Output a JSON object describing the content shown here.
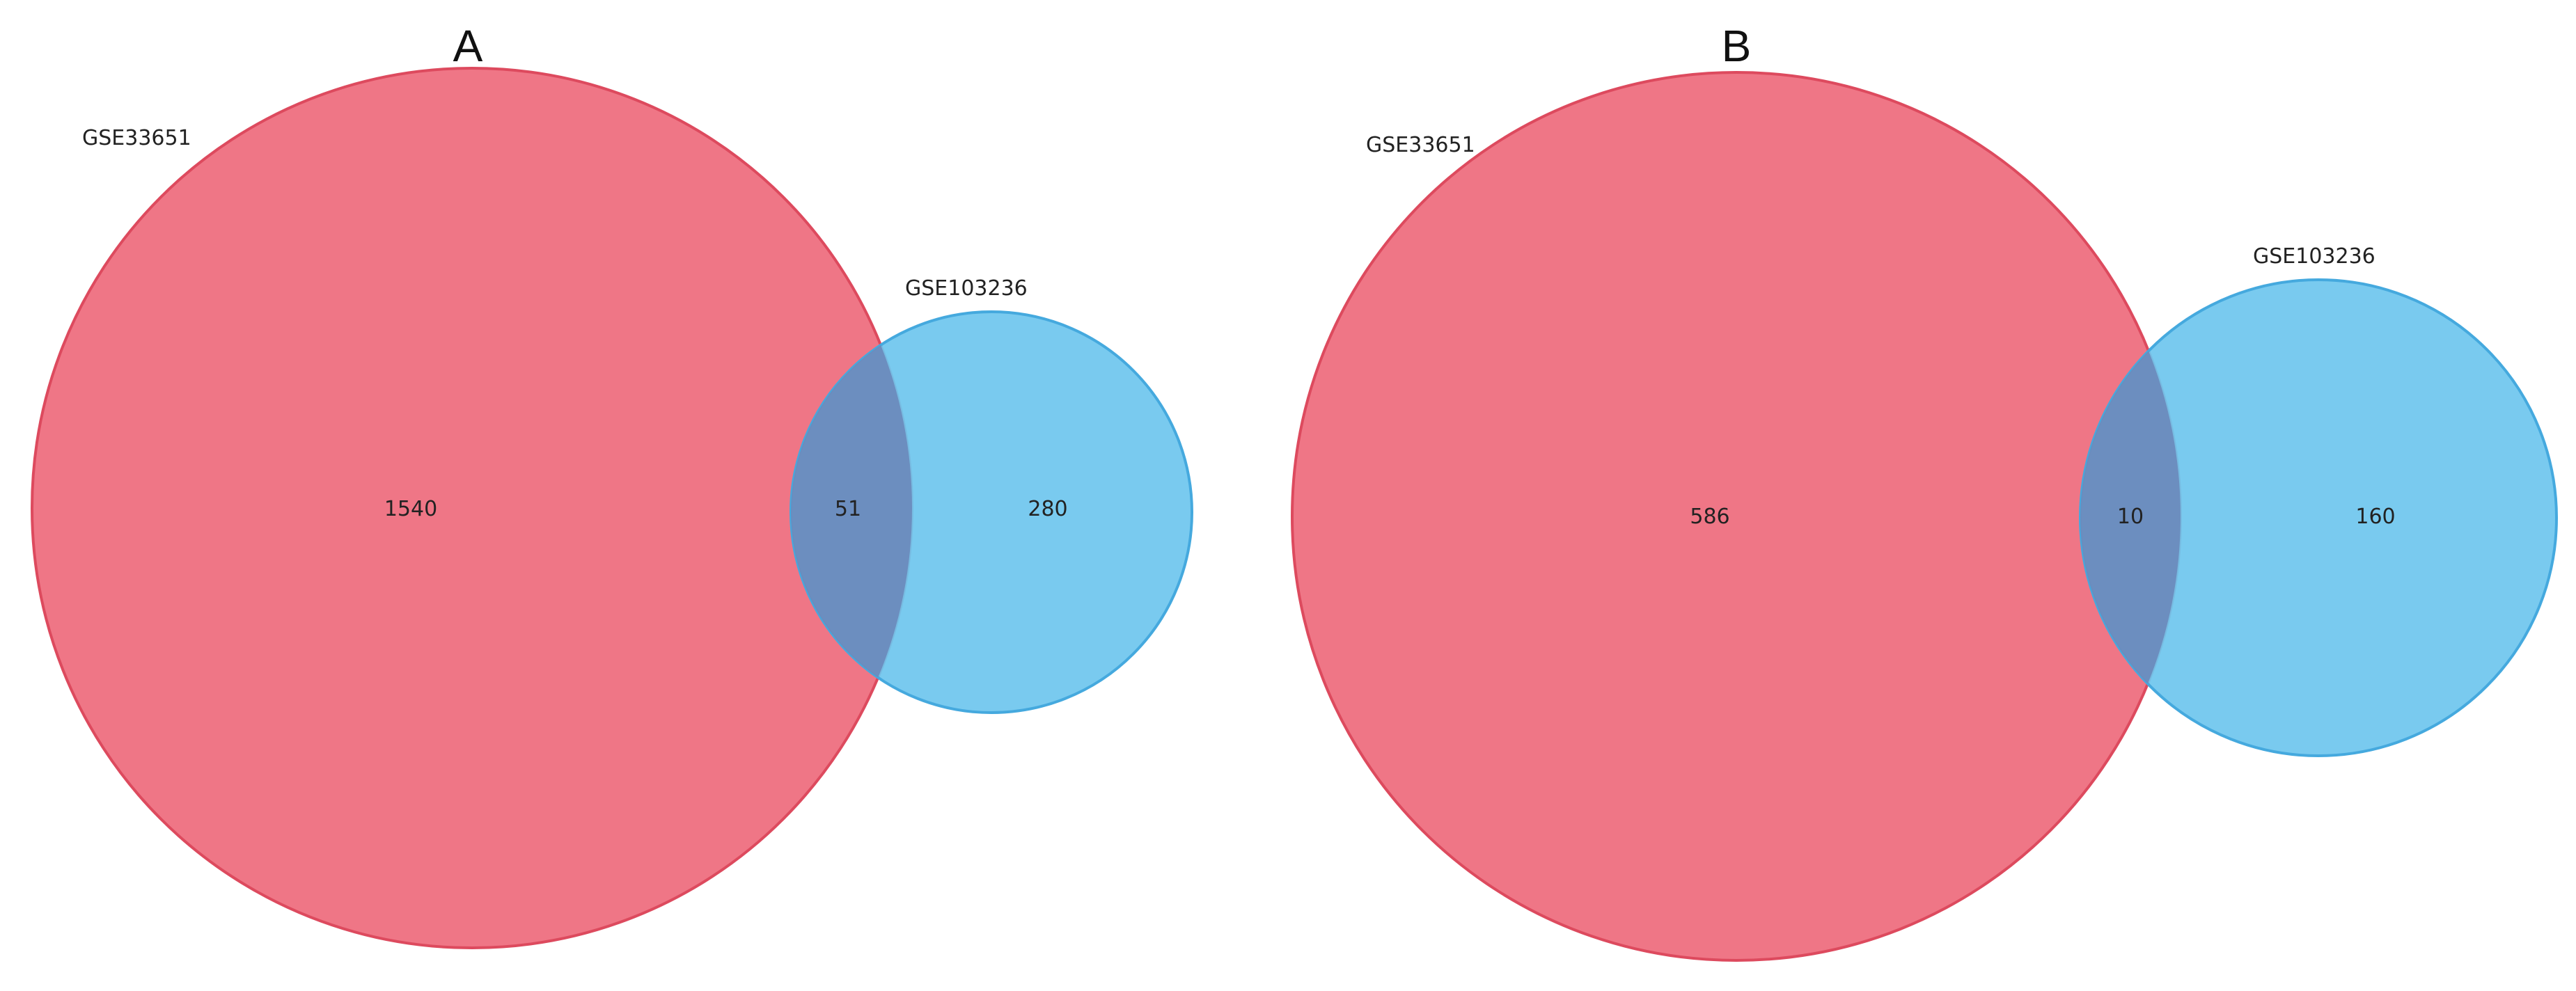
{
  "panels": [
    {
      "letter": "A",
      "left_set": {
        "name": "GSE33651",
        "unique": "1540",
        "color": "#ee6a7c"
      },
      "right_set": {
        "name": "GSE103236",
        "unique": "280",
        "color": "#6ec5ee"
      },
      "intersection": "51"
    },
    {
      "letter": "B",
      "left_set": {
        "name": "GSE33651",
        "unique": "586",
        "color": "#ee6a7c"
      },
      "right_set": {
        "name": "GSE103236",
        "unique": "160",
        "color": "#6ec5ee"
      },
      "intersection": "10"
    }
  ],
  "overlap_color": "#6b8bbd"
}
